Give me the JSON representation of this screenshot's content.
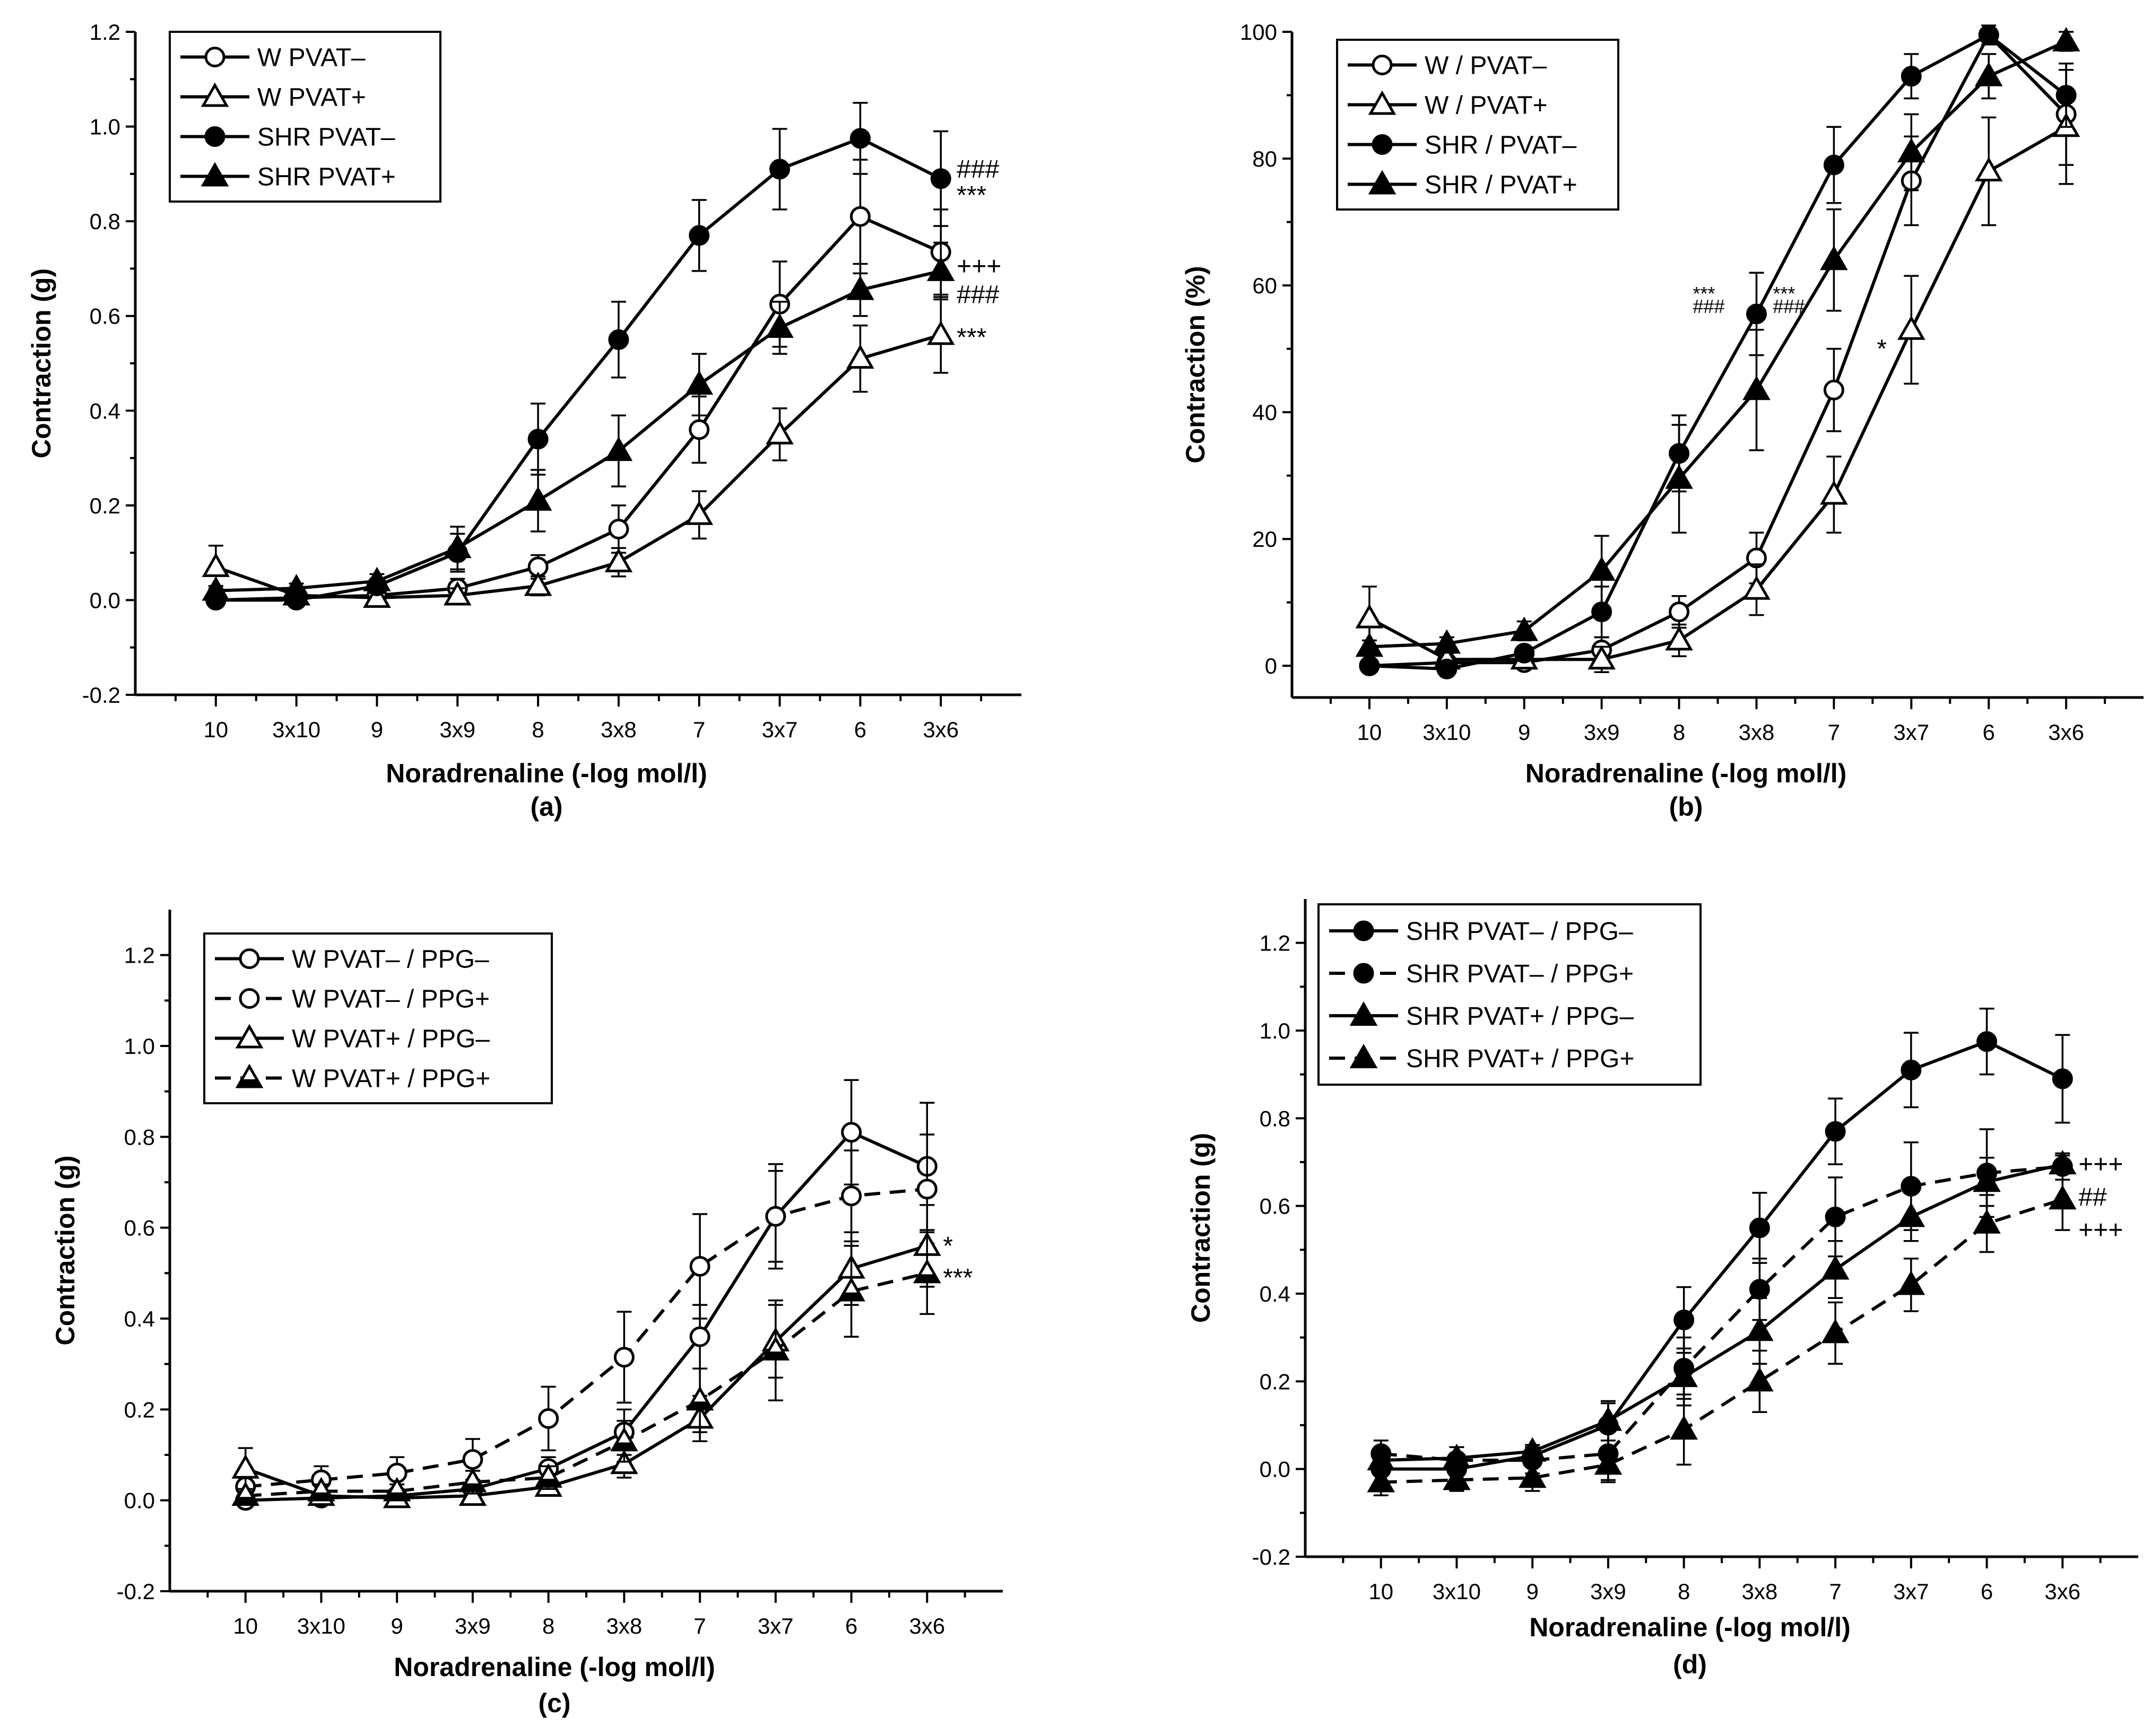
{
  "chart_data": [
    {
      "type": "line",
      "panel_label": "(a)",
      "xlabel": "Noradrenaline (-log mol/l)",
      "ylabel": "Contraction (g)",
      "categories": [
        "10",
        "3x10",
        "9",
        "3x9",
        "8",
        "3x8",
        "7",
        "3x7",
        "6",
        "3x6"
      ],
      "ylim": [
        -0.2,
        1.2
      ],
      "yticks": [
        "-0.2",
        "0.0",
        "0.2",
        "0.4",
        "0.6",
        "0.8",
        "1.0",
        "1.2"
      ],
      "legend": "top-left",
      "series": [
        {
          "name": "W PVAT–",
          "marker": "circle-open",
          "style": "solid",
          "values": [
            0.0,
            0.005,
            0.01,
            0.025,
            0.07,
            0.15,
            0.36,
            0.625,
            0.81,
            0.735
          ],
          "errors": [
            0.01,
            0.01,
            0.01,
            0.02,
            0.025,
            0.05,
            0.07,
            0.09,
            0.12,
            0.09
          ]
        },
        {
          "name": "W PVAT+",
          "marker": "triangle-open",
          "style": "solid",
          "values": [
            0.07,
            0.01,
            0.005,
            0.01,
            0.03,
            0.08,
            0.18,
            0.35,
            0.51,
            0.56
          ],
          "errors": [
            0.045,
            0.01,
            0.01,
            0.015,
            0.02,
            0.03,
            0.05,
            0.055,
            0.07,
            0.08
          ]
        },
        {
          "name": "SHR PVAT–",
          "marker": "circle-filled",
          "style": "solid",
          "values": [
            0.0,
            0.0,
            0.03,
            0.1,
            0.34,
            0.55,
            0.77,
            0.91,
            0.975,
            0.89
          ],
          "errors": [
            0.01,
            0.01,
            0.015,
            0.04,
            0.075,
            0.08,
            0.075,
            0.085,
            0.075,
            0.1
          ]
        },
        {
          "name": "SHR PVAT+",
          "marker": "triangle-filled",
          "style": "solid",
          "values": [
            0.02,
            0.025,
            0.04,
            0.11,
            0.21,
            0.315,
            0.455,
            0.575,
            0.655,
            0.695
          ],
          "errors": [
            0.01,
            0.01,
            0.015,
            0.045,
            0.065,
            0.075,
            0.065,
            0.055,
            0.055,
            0.06
          ]
        }
      ],
      "annotations": [
        {
          "text": "###",
          "x": "3x6",
          "y": 0.91
        },
        {
          "text": "***",
          "x": "3x6",
          "y": 0.855
        },
        {
          "text": "+++",
          "x": "3x6",
          "y": 0.705
        },
        {
          "text": "###",
          "x": "3x6",
          "y": 0.645
        },
        {
          "text": "***",
          "x": "3x6",
          "y": 0.555
        }
      ]
    },
    {
      "type": "line",
      "panel_label": "(b)",
      "xlabel": "Noradrenaline (-log mol/l)",
      "ylabel": "Contraction (%)",
      "categories": [
        "10",
        "3x10",
        "9",
        "3x9",
        "8",
        "3x8",
        "7",
        "3x7",
        "6",
        "3x6"
      ],
      "ylim": [
        -5,
        100
      ],
      "yticks": [
        "0",
        "20",
        "40",
        "60",
        "80",
        "100"
      ],
      "legend": "top-left",
      "series": [
        {
          "name": "W / PVAT–",
          "marker": "circle-open",
          "style": "solid",
          "values": [
            0,
            0.5,
            0.5,
            2.5,
            8.5,
            17,
            43.5,
            76.5,
            99.5,
            87
          ],
          "errors": [
            0.5,
            0.5,
            0.5,
            2,
            2.5,
            4,
            6.5,
            7,
            1.5,
            8
          ]
        },
        {
          "name": "W / PVAT+",
          "marker": "triangle-open",
          "style": "solid",
          "values": [
            7.5,
            1,
            1,
            1,
            4,
            12,
            27,
            53,
            78,
            85
          ],
          "errors": [
            5,
            1,
            1,
            2,
            2.5,
            4,
            6,
            8.5,
            8.5,
            9
          ]
        },
        {
          "name": "SHR / PVAT–",
          "marker": "circle-filled",
          "style": "solid",
          "values": [
            0,
            -0.5,
            2,
            8.5,
            33.5,
            55.5,
            79,
            93,
            99.5,
            90
          ],
          "errors": [
            0.5,
            0.5,
            1,
            4,
            6,
            6.5,
            6,
            3.5,
            1,
            5
          ]
        },
        {
          "name": "SHR / PVAT+",
          "marker": "triangle-filled",
          "style": "solid",
          "values": [
            3,
            3.5,
            5.5,
            15,
            29.5,
            43.5,
            64,
            81,
            93,
            98.5
          ],
          "errors": [
            1,
            1,
            1.5,
            5.5,
            8.5,
            9.5,
            8,
            6,
            3.5,
            1.5
          ]
        }
      ],
      "annotations": [
        {
          "text": "***",
          "x": "3x8",
          "y": 59
        },
        {
          "text": "###",
          "x": "3x8",
          "y": 57
        },
        {
          "text": "***",
          "x": "7",
          "y": 59
        },
        {
          "text": "###",
          "x": "7",
          "y": 57
        },
        {
          "text": "*",
          "x": "3x7",
          "y": 50
        }
      ]
    },
    {
      "type": "line",
      "panel_label": "(c)",
      "xlabel": "Noradrenaline (-log mol/l)",
      "ylabel": "Contraction (g)",
      "categories": [
        "10",
        "3x10",
        "9",
        "3x9",
        "8",
        "3x8",
        "7",
        "3x7",
        "6",
        "3x6"
      ],
      "ylim": [
        -0.2,
        1.3
      ],
      "yticks": [
        "-0.2",
        "0.0",
        "0.2",
        "0.4",
        "0.6",
        "0.8",
        "1.0",
        "1.2"
      ],
      "legend": "top-left",
      "series": [
        {
          "name": "W  PVAT– / PPG–",
          "marker": "circle-open",
          "style": "solid",
          "values": [
            0.0,
            0.005,
            0.01,
            0.025,
            0.07,
            0.15,
            0.36,
            0.625,
            0.81,
            0.735
          ],
          "errors": [
            0.01,
            0.01,
            0.01,
            0.02,
            0.025,
            0.05,
            0.07,
            0.115,
            0.115,
            0.14
          ]
        },
        {
          "name": "W  PVAT– / PPG+",
          "marker": "circle-open",
          "style": "dashed",
          "values": [
            0.03,
            0.045,
            0.06,
            0.09,
            0.18,
            0.315,
            0.515,
            0.625,
            0.67,
            0.685
          ],
          "errors": [
            0.02,
            0.03,
            0.035,
            0.045,
            0.07,
            0.1,
            0.115,
            0.1,
            0.1,
            0.12
          ]
        },
        {
          "name": "W  PVAT+ / PPG–",
          "marker": "triangle-open",
          "style": "solid",
          "values": [
            0.07,
            0.01,
            0.005,
            0.01,
            0.03,
            0.08,
            0.18,
            0.35,
            0.51,
            0.56
          ],
          "errors": [
            0.045,
            0.01,
            0.01,
            0.015,
            0.02,
            0.03,
            0.05,
            0.08,
            0.08,
            0.09
          ]
        },
        {
          "name": "W  PVAT+ / PPG+",
          "marker": "triangle-half",
          "style": "dashed",
          "values": [
            0.01,
            0.02,
            0.02,
            0.04,
            0.05,
            0.13,
            0.22,
            0.33,
            0.46,
            0.5
          ],
          "errors": [
            0.01,
            0.015,
            0.015,
            0.025,
            0.025,
            0.045,
            0.07,
            0.11,
            0.1,
            0.09
          ]
        }
      ],
      "annotations": [
        {
          "text": "*",
          "x": "3x6",
          "y": 0.56
        },
        {
          "text": "***",
          "x": "3x6",
          "y": 0.49
        }
      ]
    },
    {
      "type": "line",
      "panel_label": "(d)",
      "xlabel": "Noradrenaline (-log mol/l)",
      "ylabel": "Contraction (g)",
      "categories": [
        "10",
        "3x10",
        "9",
        "3x9",
        "8",
        "3x8",
        "7",
        "3x7",
        "6",
        "3x6"
      ],
      "ylim": [
        -0.2,
        1.3
      ],
      "yticks": [
        "-0.2",
        "0.0",
        "0.2",
        "0.4",
        "0.6",
        "0.8",
        "1.0",
        "1.2"
      ],
      "legend": "top-left",
      "series": [
        {
          "name": "SHR PVAT– / PPG–",
          "marker": "circle-filled",
          "style": "solid",
          "values": [
            0.0,
            0.0,
            0.03,
            0.1,
            0.34,
            0.55,
            0.77,
            0.91,
            0.975,
            0.89
          ],
          "errors": [
            0.03,
            0.03,
            0.015,
            0.05,
            0.075,
            0.08,
            0.075,
            0.085,
            0.075,
            0.1
          ]
        },
        {
          "name": "SHR PVAT– / PPG+",
          "marker": "circle-filled",
          "style": "dashed",
          "values": [
            0.035,
            0.02,
            0.02,
            0.035,
            0.23,
            0.41,
            0.575,
            0.645,
            0.675,
            0.69
          ],
          "errors": [
            0.03,
            0.03,
            0.03,
            0.06,
            0.07,
            0.07,
            0.09,
            0.1,
            0.1,
            0.03
          ]
        },
        {
          "name": "SHR PVAT+ / PPG–",
          "marker": "triangle-filled",
          "style": "solid",
          "values": [
            0.02,
            0.025,
            0.04,
            0.11,
            0.21,
            0.315,
            0.455,
            0.575,
            0.655,
            0.695
          ],
          "errors": [
            0.01,
            0.01,
            0.015,
            0.045,
            0.065,
            0.075,
            0.065,
            0.055,
            0.055,
            0.02
          ]
        },
        {
          "name": "SHR PVAT+ / PPG+",
          "marker": "triangle-filled",
          "style": "dashed",
          "values": [
            -0.03,
            -0.025,
            -0.02,
            0.01,
            0.09,
            0.2,
            0.31,
            0.42,
            0.56,
            0.615
          ],
          "errors": [
            0.03,
            0.025,
            0.03,
            0.04,
            0.08,
            0.07,
            0.07,
            0.06,
            0.065,
            0.07
          ]
        }
      ],
      "annotations": [
        {
          "text": "+++",
          "x": "3x6",
          "y": 0.695
        },
        {
          "text": "##",
          "x": "3x6",
          "y": 0.62
        },
        {
          "text": "+++",
          "x": "3x6",
          "y": 0.545
        }
      ]
    }
  ]
}
